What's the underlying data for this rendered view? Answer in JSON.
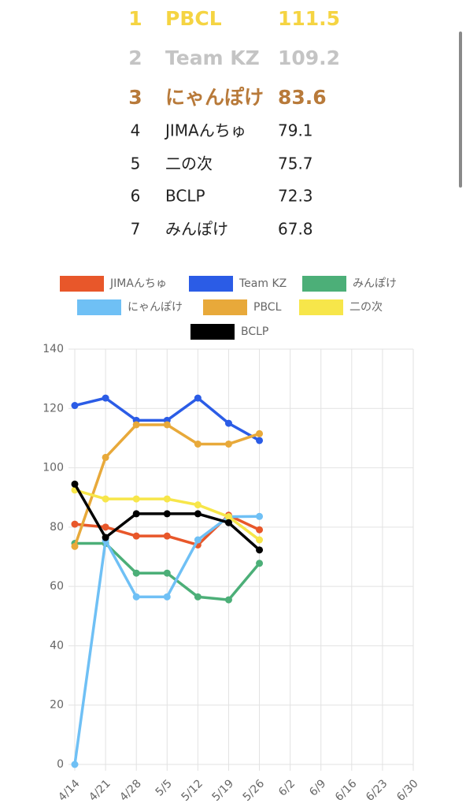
{
  "ranking": [
    {
      "rank": "1",
      "name": "PBCL",
      "score": "111.5"
    },
    {
      "rank": "2",
      "name": "Team KZ",
      "score": "109.2"
    },
    {
      "rank": "3",
      "name": "にゃんぽけ",
      "score": "83.6"
    },
    {
      "rank": "4",
      "name": "JIMAんちゅ",
      "score": "79.1"
    },
    {
      "rank": "5",
      "name": "二の次",
      "score": "75.7"
    },
    {
      "rank": "6",
      "name": "BCLP",
      "score": "72.3"
    },
    {
      "rank": "7",
      "name": "みんぽけ",
      "score": "67.8"
    }
  ],
  "chart_data": {
    "type": "line",
    "categories": [
      "4/14",
      "4/21",
      "4/28",
      "5/5",
      "5/12",
      "5/19",
      "5/26",
      "6/2",
      "6/9",
      "6/16",
      "6/23",
      "6/30"
    ],
    "series": [
      {
        "name": "JIMAんちゅ",
        "color": "#e8572a",
        "values": [
          81,
          80,
          77,
          77,
          74,
          84,
          79.1,
          null,
          null,
          null,
          null,
          null
        ]
      },
      {
        "name": "Team KZ",
        "color": "#2b5ce6",
        "values": [
          121,
          123.5,
          116,
          116,
          123.5,
          115,
          109.2,
          null,
          null,
          null,
          null,
          null
        ]
      },
      {
        "name": "みんぽけ",
        "color": "#4caf78",
        "values": [
          74.5,
          74.5,
          64.5,
          64.5,
          56.5,
          55.5,
          67.8,
          null,
          null,
          null,
          null,
          null
        ]
      },
      {
        "name": "にゃんぽけ",
        "color": "#6fc0f5",
        "values": [
          0,
          75.5,
          56.5,
          56.5,
          75.7,
          83.5,
          83.6,
          null,
          null,
          null,
          null,
          null
        ]
      },
      {
        "name": "PBCL",
        "color": "#e8a93a",
        "values": [
          73.5,
          103.5,
          114.5,
          114.5,
          108,
          108,
          111.5,
          null,
          null,
          null,
          null,
          null
        ]
      },
      {
        "name": "二の次",
        "color": "#f7e64a",
        "values": [
          92.5,
          89.5,
          89.5,
          89.5,
          87.5,
          83.5,
          75.7,
          null,
          null,
          null,
          null,
          null
        ]
      },
      {
        "name": "BCLP",
        "color": "#000000",
        "values": [
          94.5,
          76.5,
          84.5,
          84.5,
          84.5,
          81.5,
          72.3,
          null,
          null,
          null,
          null,
          null
        ]
      }
    ],
    "ylim": [
      0,
      140
    ],
    "yticks": [
      0,
      20,
      40,
      60,
      80,
      100,
      120,
      140
    ],
    "grid": true
  }
}
